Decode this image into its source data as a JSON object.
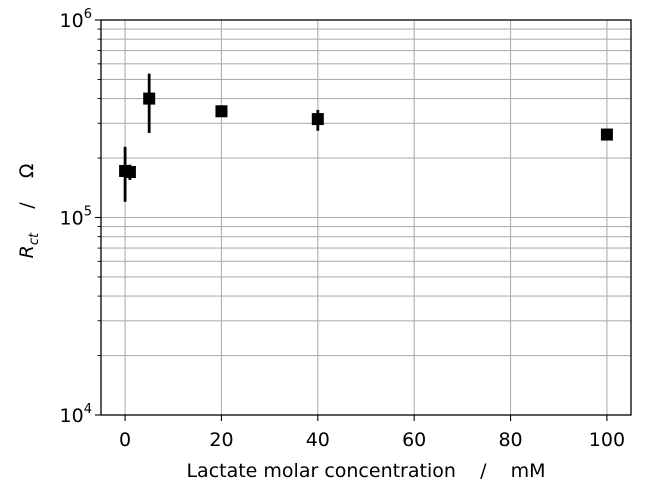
{
  "chart_data": {
    "type": "scatter",
    "xlabel": "Lactate molar concentration    /    mM",
    "ylabel": {
      "symbol": "R",
      "subscript": "ct",
      "unit_sep": "/",
      "unit": "Ω"
    },
    "xlim": [
      -5,
      105
    ],
    "ylim": [
      10000,
      1000000
    ],
    "yscale": "log",
    "grid": true,
    "x_ticks": [
      0,
      20,
      40,
      60,
      80,
      100
    ],
    "y_ticks": [
      {
        "value": 10000,
        "base": "10",
        "exp": "4"
      },
      {
        "value": 100000,
        "base": "10",
        "exp": "5"
      },
      {
        "value": 1000000,
        "base": "10",
        "exp": "6"
      }
    ],
    "marker": "square",
    "marker_color": "#000000",
    "points": [
      {
        "x": 0,
        "y": 172000,
        "yerr_low": 120000,
        "yerr_high": 228000
      },
      {
        "x": 1,
        "y": 170000,
        "yerr_low": 155000,
        "yerr_high": 185000
      },
      {
        "x": 5,
        "y": 400000,
        "yerr_low": 268000,
        "yerr_high": 535000
      },
      {
        "x": 20,
        "y": 345000,
        "yerr_low": 330000,
        "yerr_high": 360000
      },
      {
        "x": 40,
        "y": 315000,
        "yerr_low": 275000,
        "yerr_high": 350000
      },
      {
        "x": 100,
        "y": 263000,
        "yerr_low": 253000,
        "yerr_high": 273000
      }
    ]
  }
}
